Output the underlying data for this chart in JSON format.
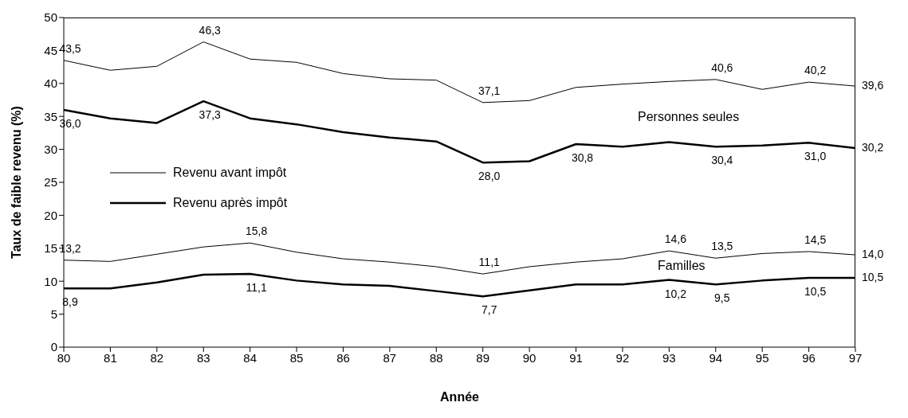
{
  "chart_data": {
    "type": "line",
    "xlabel": "Année",
    "ylabel": "Taux de faible revenu (%)",
    "categories": [
      "80",
      "81",
      "82",
      "83",
      "84",
      "85",
      "86",
      "87",
      "88",
      "89",
      "90",
      "91",
      "92",
      "93",
      "94",
      "95",
      "96",
      "97"
    ],
    "series": [
      {
        "name": "Revenu avant impôt",
        "color": "#000000",
        "values": [
          43.5,
          42.0,
          42.6,
          46.3,
          43.7,
          43.2,
          41.5,
          40.7,
          40.5,
          37.1,
          37.4,
          39.4,
          39.9,
          40.3,
          40.6,
          39.1,
          40.2,
          39.6
        ],
        "value_labels": [
          "43,5",
          null,
          null,
          "46,3",
          null,
          null,
          null,
          null,
          null,
          "37,1",
          null,
          null,
          null,
          null,
          "40,6",
          null,
          "40,2",
          "39,6"
        ]
      },
      {
        "name": "Revenu après impôt",
        "color": "#000000",
        "values": [
          36.0,
          34.7,
          34.0,
          37.3,
          34.7,
          33.8,
          32.6,
          31.8,
          31.2,
          28.0,
          28.2,
          30.8,
          30.4,
          31.1,
          30.4,
          30.6,
          31.0,
          30.2
        ],
        "value_labels": [
          "36,0",
          null,
          null,
          "37,3",
          null,
          null,
          null,
          null,
          null,
          "28,0",
          null,
          "30,8",
          null,
          null,
          "30,4",
          null,
          "31,0",
          "30,2"
        ]
      },
      {
        "color": "#000000",
        "values": [
          13.2,
          13.0,
          14.1,
          15.2,
          15.8,
          14.4,
          13.4,
          12.9,
          12.2,
          11.1,
          12.2,
          12.9,
          13.4,
          14.6,
          13.5,
          14.2,
          14.5,
          14.0
        ],
        "value_labels": [
          "13,2",
          null,
          null,
          null,
          "15,8",
          null,
          null,
          null,
          null,
          "11,1",
          null,
          null,
          null,
          "14,6",
          "13,5",
          null,
          "14,5",
          "14,0"
        ]
      },
      {
        "color": "#000000",
        "values": [
          8.9,
          8.9,
          9.8,
          11.0,
          11.1,
          10.1,
          9.5,
          9.3,
          8.5,
          7.7,
          8.6,
          9.5,
          9.5,
          10.2,
          9.5,
          10.1,
          10.5,
          10.5
        ],
        "value_labels": [
          "8,9",
          null,
          null,
          null,
          "11,1",
          null,
          null,
          null,
          null,
          "7,7",
          null,
          null,
          null,
          "10,2",
          "9,5",
          null,
          "10,5",
          "10,5"
        ]
      }
    ],
    "annotations": [
      "Personnes seules",
      "Familles"
    ],
    "ylim": [
      0,
      50
    ],
    "yticks": [
      0,
      5,
      10,
      15,
      20,
      25,
      30,
      35,
      40,
      45,
      50
    ],
    "grid": false,
    "legend": "left",
    "marker": "none"
  }
}
